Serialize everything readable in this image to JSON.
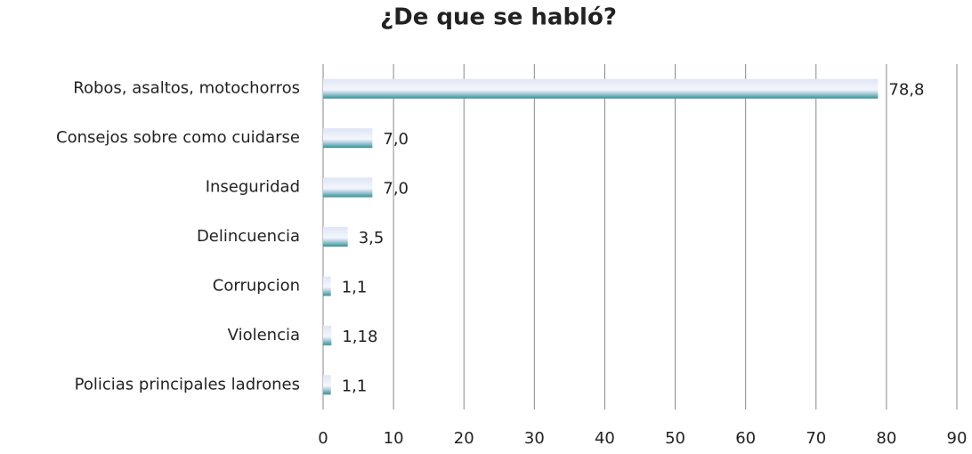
{
  "chart_data": {
    "type": "bar",
    "orientation": "horizontal",
    "title": "¿De que se habló?",
    "categories": [
      "Robos, asaltos, motochorros",
      "Consejos  sobre como cuidarse",
      "Inseguridad",
      "Delincuencia",
      "Corrupcion",
      "Violencia",
      "Policias principales ladrones"
    ],
    "values": [
      78.8,
      7.0,
      7.0,
      3.5,
      1.1,
      1.18,
      1.1
    ],
    "value_labels": [
      "78,8",
      "7,0",
      "7,0",
      "3,5",
      "1,1",
      "1,18",
      "1,1"
    ],
    "color": "#2e9494",
    "xlim": [
      0,
      90
    ],
    "xticks": [
      0,
      10,
      20,
      30,
      40,
      50,
      60,
      70,
      80,
      90
    ],
    "grid": true
  }
}
